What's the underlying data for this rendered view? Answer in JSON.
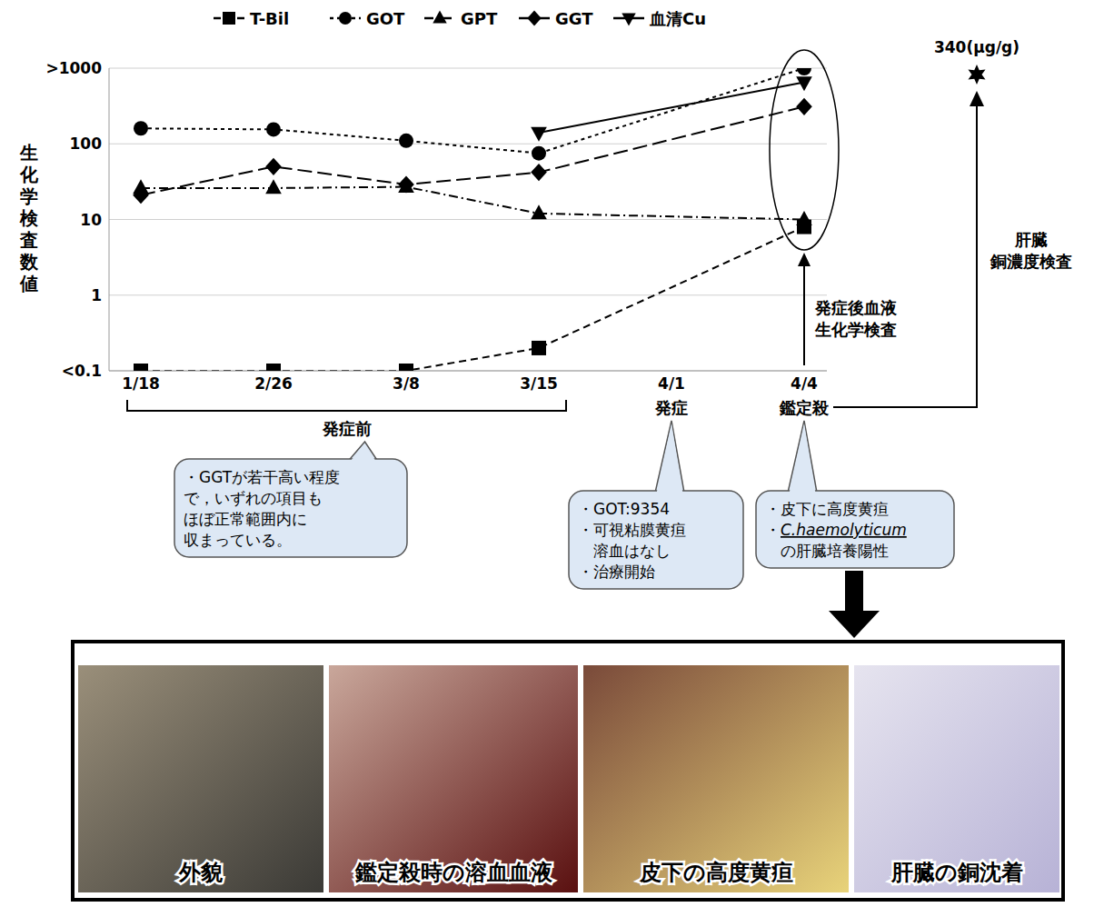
{
  "chart_data": {
    "type": "line",
    "log": "y",
    "grid": true,
    "legend": "top",
    "y_label": "生化学検査数値",
    "categories": [
      "1/18",
      "2/26",
      "3/8",
      "3/15",
      "4/1",
      "4/4"
    ],
    "ylim": [
      0.1,
      1000
    ],
    "yticks": [
      {
        "value": 0.1,
        "label": "<0.1"
      },
      1,
      10,
      100,
      {
        "value": 1000,
        "label": ">1000"
      }
    ],
    "series": [
      {
        "name": "T-Bil",
        "color": "#000000",
        "marker": "square",
        "line_style": "dashed",
        "values": [
          0.1,
          0.1,
          0.1,
          0.2,
          null,
          8
        ]
      },
      {
        "name": "GOT",
        "color": "#000000",
        "marker": "circle",
        "line_style": "dotted",
        "values": [
          160,
          155,
          110,
          75,
          null,
          1000
        ]
      },
      {
        "name": "GPT",
        "color": "#000000",
        "marker": "triangle",
        "line_style": "dashdot",
        "values": [
          26,
          26,
          27,
          12,
          null,
          10
        ]
      },
      {
        "name": "GGT",
        "color": "#000000",
        "marker": "diamond",
        "line_style": "longdash",
        "values": [
          21,
          50,
          29,
          42,
          null,
          310
        ]
      },
      {
        "name": "血清Cu",
        "color": "#000000",
        "marker": "triangle-down",
        "line_style": "solid",
        "values": [
          null,
          null,
          null,
          140,
          null,
          650
        ]
      }
    ],
    "periods": {
      "before": "発症前",
      "onset": "発症",
      "slaughter": "鑑定殺"
    },
    "annotations": {
      "blood_test": [
        "発症後血液",
        "生化学検査"
      ],
      "liver_test": [
        "肝臓",
        "銅濃度検査"
      ],
      "liver_cu_label": "340(μg/g)"
    },
    "callouts": [
      [
        "・GGTが若干高い程度",
        "で，いずれの項目も",
        "ほぼ正常範囲内に",
        "収まっている。"
      ],
      [
        "・GOT:9354",
        "・可視粘膜黄疸",
        "　溶血はなし",
        "・治療開始"
      ],
      [
        "・皮下に高度黄疸",
        "・C.haemolyticum",
        "　の肝臓培養陽性"
      ]
    ]
  },
  "photo_captions": [
    "外貌",
    "鑑定殺時の溶血血液",
    "皮下の高度黄疸",
    "肝臓の銅沈着"
  ]
}
